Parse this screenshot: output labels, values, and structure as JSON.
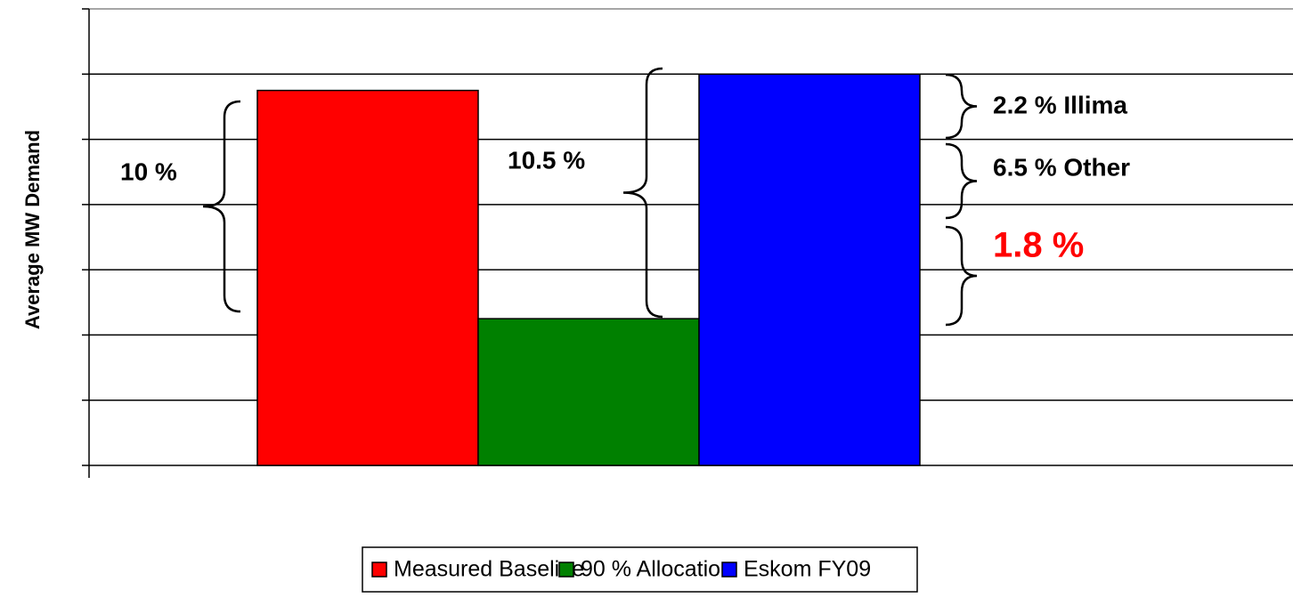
{
  "chart_data": {
    "type": "bar",
    "y_label": "Average MW Demand",
    "categories": [
      null
    ],
    "series": [
      {
        "name": "Measured Baseline",
        "color": "#ff0000",
        "values": [
          5.75
        ]
      },
      {
        "name": "90 % Allocation",
        "color": "#008000",
        "values": [
          2.25
        ]
      },
      {
        "name": "Eskom FY09",
        "color": "#0000ff",
        "values": [
          6
        ]
      }
    ],
    "ylim": [
      0,
      7
    ],
    "yticks": [
      0,
      1,
      2,
      3,
      4,
      5,
      6,
      7
    ],
    "grid": true,
    "legend": "bottom",
    "annotations": [
      {
        "text": "10 %",
        "color": "#000000"
      },
      {
        "text": "10.5 %",
        "color": "#000000"
      },
      {
        "text": "2.2 % Illima",
        "color": "#000000"
      },
      {
        "text": "6.5 % Other",
        "color": "#000000"
      },
      {
        "text": "1.8 %",
        "color": "#ff0000"
      }
    ]
  }
}
